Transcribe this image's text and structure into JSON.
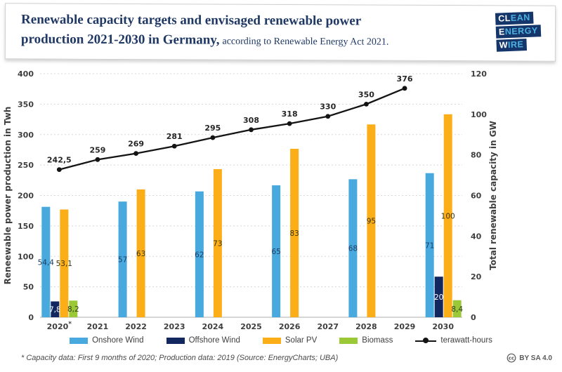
{
  "header": {
    "title": {
      "line1_bold": "Renewable capacity targets and envisaged renewable power",
      "line2_bold": "production 2021-2030 in Germany,",
      "line2_regular": "according to Renewable Energy Act 2021."
    },
    "logo": {
      "rows": [
        {
          "strong": "CL",
          "rest": "EAN"
        },
        {
          "strong": "E",
          "rest": "NERGY"
        },
        {
          "strong": "W",
          "rest": "IRE"
        }
      ],
      "bg_color": "#15366b",
      "accent_color": "#4db1e2"
    },
    "title_color": "#1f3864"
  },
  "chart_data": {
    "type": "bar+line combo",
    "categories": [
      "2020*",
      "2021",
      "2022",
      "2023",
      "2024",
      "2025",
      "2026",
      "2027",
      "2028",
      "2029",
      "2030"
    ],
    "left_axis": {
      "title": "Reneewable power production in Twh",
      "min": 0,
      "max": 400,
      "step": 50
    },
    "right_axis": {
      "title": "Total renewable capacity in GW",
      "min": 0,
      "max": 120,
      "step": 20
    },
    "grid": "dashed horizontal",
    "bar_series": [
      {
        "name": "Onshore Wind",
        "axis": "right",
        "color": "#47a9de",
        "label_color": "#1c3c63",
        "values": [
          54.4,
          null,
          57,
          null,
          62,
          null,
          65,
          null,
          68,
          null,
          71
        ],
        "labels": [
          "54,4",
          null,
          "57",
          null,
          "62",
          null,
          "65",
          null,
          "68",
          null,
          "71"
        ]
      },
      {
        "name": "Offshore Wind",
        "axis": "right",
        "color": "#12275f",
        "label_color": "#ffffff",
        "values": [
          7.8,
          null,
          null,
          null,
          null,
          null,
          null,
          null,
          null,
          null,
          20
        ],
        "labels": [
          "7,8",
          null,
          null,
          null,
          null,
          null,
          null,
          null,
          null,
          null,
          "20"
        ]
      },
      {
        "name": "Solar PV",
        "axis": "right",
        "color": "#fbae17",
        "label_color": "#3d3208",
        "values": [
          53.1,
          null,
          63,
          null,
          73,
          null,
          83,
          null,
          95,
          null,
          100
        ],
        "labels": [
          "53,1",
          null,
          "63",
          null,
          "73",
          null,
          "83",
          null,
          "95",
          null,
          "100"
        ]
      },
      {
        "name": "Biomass",
        "axis": "right",
        "color": "#9bc837",
        "label_color": "#33411a",
        "values": [
          8.2,
          null,
          null,
          null,
          null,
          null,
          null,
          null,
          null,
          null,
          8.4
        ],
        "labels": [
          "8,2",
          null,
          null,
          null,
          null,
          null,
          null,
          null,
          null,
          null,
          "8,4"
        ]
      }
    ],
    "line_series": {
      "name": "terawatt-hours",
      "axis": "left",
      "color": "#141414",
      "values": [
        242.5,
        259,
        269,
        281,
        295,
        308,
        318,
        330,
        350,
        376,
        null
      ],
      "labels": [
        "242,5",
        "259",
        "269",
        "281",
        "295",
        "308",
        "318",
        "330",
        "350",
        "376",
        null
      ]
    },
    "legend_position": "bottom"
  },
  "legend": {
    "items": [
      {
        "label": "Onshore Wind",
        "color": "#47a9de",
        "marker": "rect"
      },
      {
        "label": "Offshore Wind",
        "color": "#12275f",
        "marker": "rect"
      },
      {
        "label": "Solar PV",
        "color": "#fbae17",
        "marker": "rect"
      },
      {
        "label": "Biomass",
        "color": "#9bc837",
        "marker": "rect"
      },
      {
        "label": "terawatt-hours",
        "color": "#141414",
        "marker": "line"
      }
    ]
  },
  "footnote": "* Capacity data: First 9 months of 2020; Production data: 2019 (Source: EnergyCharts; UBA)",
  "license": {
    "icon": "cc-icon",
    "text": "BY SA 4.0"
  }
}
